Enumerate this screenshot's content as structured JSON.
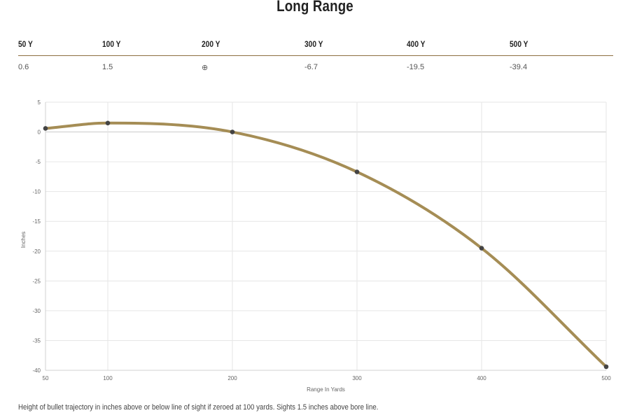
{
  "title": "Long Range",
  "table": {
    "headers": [
      "50 Y",
      "100 Y",
      "200 Y",
      "300 Y",
      "400 Y",
      "500 Y"
    ],
    "values": [
      "0.6",
      "1.5",
      "⊕",
      "-6.7",
      "-19.5",
      "-39.4"
    ]
  },
  "footnote": "Height of bullet trajectory in inches above or below line of sight if zeroed at 100 yards. Sights 1.5 inches above bore line.",
  "colors": {
    "line": "#a58d55",
    "point": "#444444",
    "grid": "#e6e6e6",
    "zero_line": "#cccccc",
    "table_rule": "#8c6f3f"
  },
  "chart_data": {
    "type": "line",
    "title": "",
    "xlabel": "Range In Yards",
    "ylabel": "Inches",
    "x": [
      50,
      100,
      200,
      300,
      400,
      500
    ],
    "xticks": [
      "50",
      "100",
      "200",
      "300",
      "400",
      "500"
    ],
    "yticks": [
      "5",
      "0",
      "-5",
      "-10",
      "-15",
      "-20",
      "-25",
      "-30",
      "-35",
      "-40"
    ],
    "xlim": [
      50,
      500
    ],
    "ylim": [
      -40,
      5
    ],
    "grid": true,
    "series": [
      {
        "values": [
          0.6,
          1.5,
          0,
          -6.7,
          -19.5,
          -39.4
        ]
      }
    ]
  }
}
